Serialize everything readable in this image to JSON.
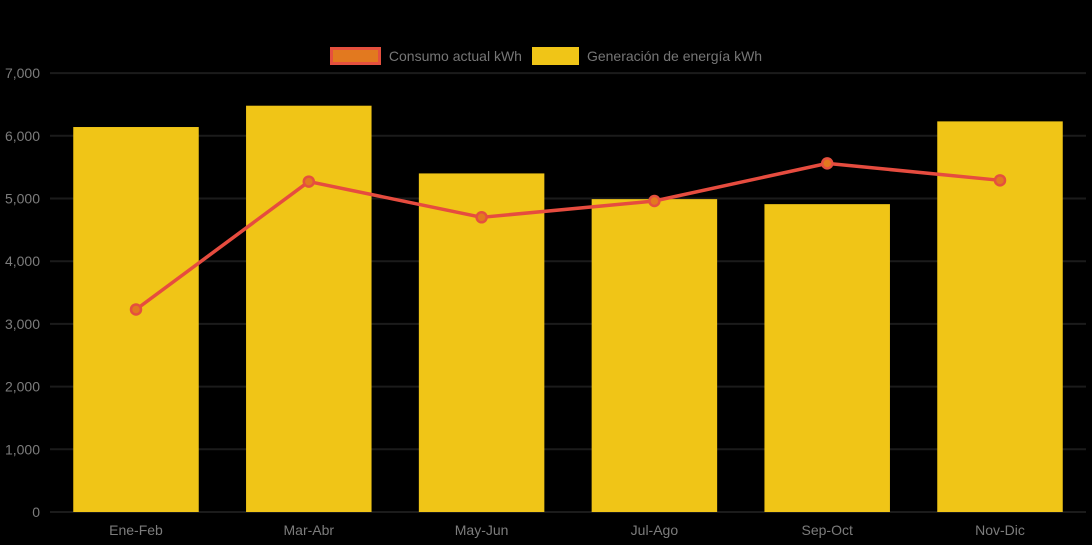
{
  "chart_data": {
    "type": "bar",
    "subtype": "combo-bar-line",
    "title": "",
    "xlabel": "",
    "ylabel": "",
    "categories": [
      "Ene-Feb",
      "Mar-Abr",
      "May-Jun",
      "Jul-Ago",
      "Sep-Oct",
      "Nov-Dic"
    ],
    "series": [
      {
        "name": "Generación de energía kWh",
        "type": "bar",
        "values": [
          6140,
          6480,
          5400,
          4990,
          4910,
          6230
        ]
      },
      {
        "name": "Consumo actual kWh",
        "type": "line",
        "values": [
          3230,
          5270,
          4700,
          4960,
          5560,
          5290
        ]
      }
    ],
    "ylim": [
      0,
      7000
    ],
    "ytick_values": [
      0,
      1000,
      2000,
      3000,
      4000,
      5000,
      6000,
      7000
    ],
    "ytick_labels": [
      "0",
      "1,000",
      "2,000",
      "3,000",
      "4,000",
      "5,000",
      "6,000",
      "7,000"
    ],
    "grid": "horizontal-hidden-dark",
    "legend_position": "top-center"
  },
  "legend": {
    "items": [
      {
        "label": "Consumo actual kWh",
        "swatch": "line"
      },
      {
        "label": "Generación de energía kWh",
        "swatch": "bar"
      }
    ]
  },
  "colors": {
    "background": "#000000",
    "bar_fill": "#F0C517",
    "line_stroke": "#E64C3F",
    "marker_fill": "#E2791F",
    "marker_stroke": "#E5503E",
    "legend_line_swatch_fill": "#E2791F",
    "legend_line_swatch_border": "#E5503E",
    "axis_text": "#7C7C7C",
    "legend_text": "#767676",
    "gridline": "#1B1B1B"
  }
}
